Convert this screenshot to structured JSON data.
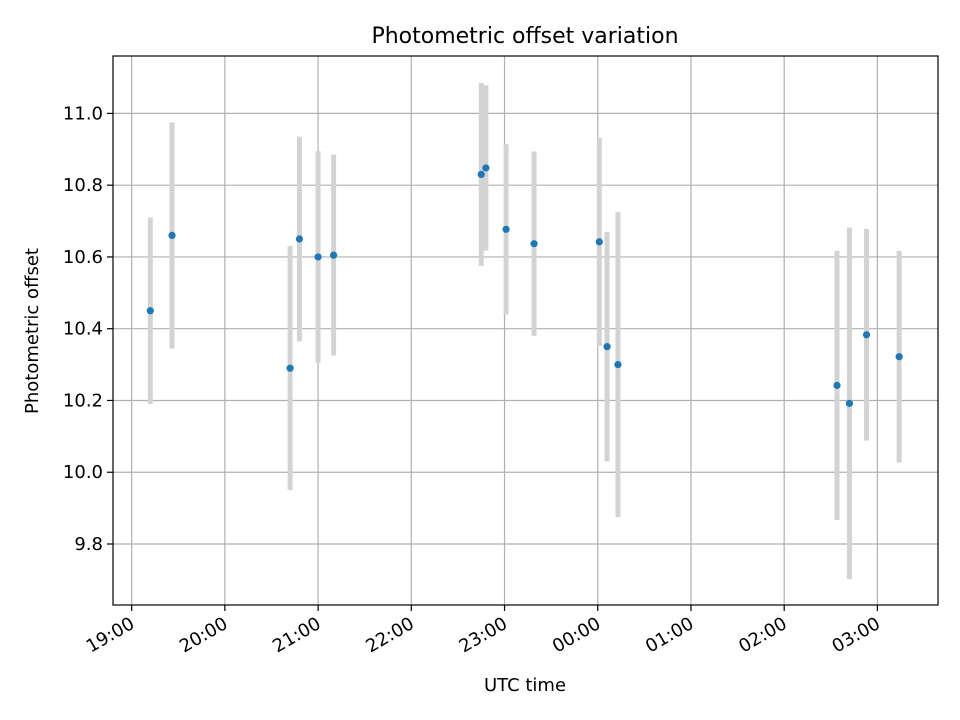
{
  "chart_data": {
    "type": "scatter",
    "title": "Photometric offset variation",
    "xlabel": "UTC time",
    "ylabel": "Photometric offset",
    "x_ticks": [
      "19:00",
      "20:00",
      "21:00",
      "22:00",
      "23:00",
      "00:00",
      "01:00",
      "02:00",
      "03:00"
    ],
    "x_range_hours": [
      18.8,
      27.65
    ],
    "y_ticks": [
      "9.8",
      "10.0",
      "10.2",
      "10.4",
      "10.6",
      "10.8",
      "11.0"
    ],
    "ylim": [
      9.63,
      11.16
    ],
    "grid": true,
    "colors": {
      "points": "#1f77b4",
      "errorbars": "#d3d3d3",
      "grid": "#b0b0b0"
    },
    "series": [
      {
        "points": [
          {
            "x": "19:12",
            "y": 10.45,
            "err": 0.26
          },
          {
            "x": "19:26",
            "y": 10.66,
            "err": 0.315
          },
          {
            "x": "20:42",
            "y": 10.29,
            "err": 0.34
          },
          {
            "x": "20:48",
            "y": 10.65,
            "err": 0.285
          },
          {
            "x": "21:00",
            "y": 10.6,
            "err": 0.295
          },
          {
            "x": "21:10",
            "y": 10.605,
            "err": 0.28
          },
          {
            "x": "22:45",
            "y": 10.83,
            "err": 0.255
          },
          {
            "x": "22:48",
            "y": 10.848,
            "err": 0.23
          },
          {
            "x": "23:01",
            "y": 10.677,
            "err": 0.237
          },
          {
            "x": "23:19",
            "y": 10.637,
            "err": 0.257
          },
          {
            "x": "00:01",
            "y": 10.642,
            "err": 0.29
          },
          {
            "x": "00:06",
            "y": 10.35,
            "err": 0.32
          },
          {
            "x": "00:13",
            "y": 10.3,
            "err": 0.425
          },
          {
            "x": "02:34",
            "y": 10.242,
            "err": 0.375
          },
          {
            "x": "02:42",
            "y": 10.192,
            "err": 0.49
          },
          {
            "x": "02:53",
            "y": 10.383,
            "err": 0.295
          },
          {
            "x": "03:14",
            "y": 10.322,
            "err": 0.295
          }
        ]
      }
    ]
  }
}
